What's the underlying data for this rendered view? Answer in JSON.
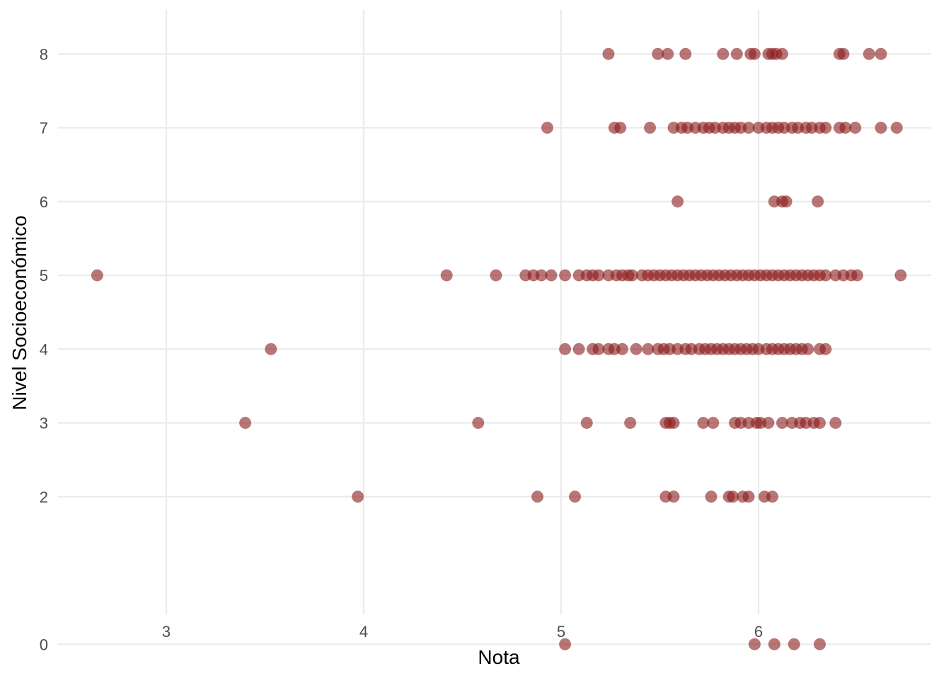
{
  "chart_data": {
    "type": "scatter",
    "title": "",
    "xlabel": "Nota",
    "ylabel": "Nivel Socioeconómico",
    "xlim": [
      2.5,
      6.9
    ],
    "ylim": [
      -0.55,
      8.6
    ],
    "x_ticks": [
      3,
      4,
      5,
      6
    ],
    "y_ticks": [
      0,
      2,
      3,
      4,
      5,
      6,
      7,
      8
    ],
    "x_tick_labels": [
      "3",
      "4",
      "5",
      "6"
    ],
    "y_tick_labels": [
      "0",
      "2",
      "3",
      "4",
      "5",
      "6",
      "7",
      "8"
    ],
    "grid": true,
    "legend": "none",
    "point_color": "#8b1a1a",
    "point_opacity": 0.6,
    "points": [
      {
        "x": 5.02,
        "y": 0
      },
      {
        "x": 5.98,
        "y": 0
      },
      {
        "x": 6.08,
        "y": 0
      },
      {
        "x": 6.18,
        "y": 0
      },
      {
        "x": 6.31,
        "y": 0
      },
      {
        "x": 3.97,
        "y": 2
      },
      {
        "x": 4.88,
        "y": 2
      },
      {
        "x": 5.07,
        "y": 2
      },
      {
        "x": 5.53,
        "y": 2
      },
      {
        "x": 5.57,
        "y": 2
      },
      {
        "x": 5.76,
        "y": 2
      },
      {
        "x": 5.85,
        "y": 2
      },
      {
        "x": 5.87,
        "y": 2
      },
      {
        "x": 5.92,
        "y": 2
      },
      {
        "x": 5.95,
        "y": 2
      },
      {
        "x": 6.03,
        "y": 2
      },
      {
        "x": 6.07,
        "y": 2
      },
      {
        "x": 3.4,
        "y": 3
      },
      {
        "x": 4.58,
        "y": 3
      },
      {
        "x": 5.13,
        "y": 3
      },
      {
        "x": 5.35,
        "y": 3
      },
      {
        "x": 5.53,
        "y": 3
      },
      {
        "x": 5.55,
        "y": 3
      },
      {
        "x": 5.57,
        "y": 3
      },
      {
        "x": 5.72,
        "y": 3
      },
      {
        "x": 5.77,
        "y": 3
      },
      {
        "x": 5.88,
        "y": 3
      },
      {
        "x": 5.91,
        "y": 3
      },
      {
        "x": 5.95,
        "y": 3
      },
      {
        "x": 5.99,
        "y": 3
      },
      {
        "x": 6.01,
        "y": 3
      },
      {
        "x": 6.05,
        "y": 3
      },
      {
        "x": 6.12,
        "y": 3
      },
      {
        "x": 6.17,
        "y": 3
      },
      {
        "x": 6.21,
        "y": 3
      },
      {
        "x": 6.24,
        "y": 3
      },
      {
        "x": 6.28,
        "y": 3
      },
      {
        "x": 6.31,
        "y": 3
      },
      {
        "x": 6.39,
        "y": 3
      },
      {
        "x": 3.53,
        "y": 4
      },
      {
        "x": 5.02,
        "y": 4
      },
      {
        "x": 5.09,
        "y": 4
      },
      {
        "x": 5.16,
        "y": 4
      },
      {
        "x": 5.19,
        "y": 4
      },
      {
        "x": 5.24,
        "y": 4
      },
      {
        "x": 5.27,
        "y": 4
      },
      {
        "x": 5.31,
        "y": 4
      },
      {
        "x": 5.38,
        "y": 4
      },
      {
        "x": 5.44,
        "y": 4
      },
      {
        "x": 5.49,
        "y": 4
      },
      {
        "x": 5.52,
        "y": 4
      },
      {
        "x": 5.55,
        "y": 4
      },
      {
        "x": 5.59,
        "y": 4
      },
      {
        "x": 5.63,
        "y": 4
      },
      {
        "x": 5.66,
        "y": 4
      },
      {
        "x": 5.7,
        "y": 4
      },
      {
        "x": 5.73,
        "y": 4
      },
      {
        "x": 5.76,
        "y": 4
      },
      {
        "x": 5.79,
        "y": 4
      },
      {
        "x": 5.82,
        "y": 4
      },
      {
        "x": 5.85,
        "y": 4
      },
      {
        "x": 5.88,
        "y": 4
      },
      {
        "x": 5.91,
        "y": 4
      },
      {
        "x": 5.94,
        "y": 4
      },
      {
        "x": 5.97,
        "y": 4
      },
      {
        "x": 6.0,
        "y": 4
      },
      {
        "x": 6.04,
        "y": 4
      },
      {
        "x": 6.07,
        "y": 4
      },
      {
        "x": 6.1,
        "y": 4
      },
      {
        "x": 6.13,
        "y": 4
      },
      {
        "x": 6.16,
        "y": 4
      },
      {
        "x": 6.19,
        "y": 4
      },
      {
        "x": 6.22,
        "y": 4
      },
      {
        "x": 6.25,
        "y": 4
      },
      {
        "x": 6.31,
        "y": 4
      },
      {
        "x": 6.34,
        "y": 4
      },
      {
        "x": 2.65,
        "y": 5
      },
      {
        "x": 4.42,
        "y": 5
      },
      {
        "x": 4.67,
        "y": 5
      },
      {
        "x": 4.82,
        "y": 5
      },
      {
        "x": 4.86,
        "y": 5
      },
      {
        "x": 4.9,
        "y": 5
      },
      {
        "x": 4.95,
        "y": 5
      },
      {
        "x": 5.02,
        "y": 5
      },
      {
        "x": 5.09,
        "y": 5
      },
      {
        "x": 5.13,
        "y": 5
      },
      {
        "x": 5.16,
        "y": 5
      },
      {
        "x": 5.19,
        "y": 5
      },
      {
        "x": 5.24,
        "y": 5
      },
      {
        "x": 5.28,
        "y": 5
      },
      {
        "x": 5.31,
        "y": 5
      },
      {
        "x": 5.34,
        "y": 5
      },
      {
        "x": 5.36,
        "y": 5
      },
      {
        "x": 5.41,
        "y": 5
      },
      {
        "x": 5.44,
        "y": 5
      },
      {
        "x": 5.47,
        "y": 5
      },
      {
        "x": 5.5,
        "y": 5
      },
      {
        "x": 5.53,
        "y": 5
      },
      {
        "x": 5.56,
        "y": 5
      },
      {
        "x": 5.59,
        "y": 5
      },
      {
        "x": 5.62,
        "y": 5
      },
      {
        "x": 5.65,
        "y": 5
      },
      {
        "x": 5.68,
        "y": 5
      },
      {
        "x": 5.71,
        "y": 5
      },
      {
        "x": 5.74,
        "y": 5
      },
      {
        "x": 5.77,
        "y": 5
      },
      {
        "x": 5.8,
        "y": 5
      },
      {
        "x": 5.83,
        "y": 5
      },
      {
        "x": 5.86,
        "y": 5
      },
      {
        "x": 5.89,
        "y": 5
      },
      {
        "x": 5.92,
        "y": 5
      },
      {
        "x": 5.95,
        "y": 5
      },
      {
        "x": 5.98,
        "y": 5
      },
      {
        "x": 6.01,
        "y": 5
      },
      {
        "x": 6.04,
        "y": 5
      },
      {
        "x": 6.07,
        "y": 5
      },
      {
        "x": 6.1,
        "y": 5
      },
      {
        "x": 6.13,
        "y": 5
      },
      {
        "x": 6.16,
        "y": 5
      },
      {
        "x": 6.19,
        "y": 5
      },
      {
        "x": 6.22,
        "y": 5
      },
      {
        "x": 6.25,
        "y": 5
      },
      {
        "x": 6.28,
        "y": 5
      },
      {
        "x": 6.31,
        "y": 5
      },
      {
        "x": 6.34,
        "y": 5
      },
      {
        "x": 6.39,
        "y": 5
      },
      {
        "x": 6.43,
        "y": 5
      },
      {
        "x": 6.47,
        "y": 5
      },
      {
        "x": 6.5,
        "y": 5
      },
      {
        "x": 6.72,
        "y": 5
      },
      {
        "x": 5.59,
        "y": 6
      },
      {
        "x": 6.08,
        "y": 6
      },
      {
        "x": 6.12,
        "y": 6
      },
      {
        "x": 6.14,
        "y": 6
      },
      {
        "x": 6.3,
        "y": 6
      },
      {
        "x": 4.93,
        "y": 7
      },
      {
        "x": 5.27,
        "y": 7
      },
      {
        "x": 5.3,
        "y": 7
      },
      {
        "x": 5.45,
        "y": 7
      },
      {
        "x": 5.57,
        "y": 7
      },
      {
        "x": 5.61,
        "y": 7
      },
      {
        "x": 5.64,
        "y": 7
      },
      {
        "x": 5.68,
        "y": 7
      },
      {
        "x": 5.72,
        "y": 7
      },
      {
        "x": 5.75,
        "y": 7
      },
      {
        "x": 5.78,
        "y": 7
      },
      {
        "x": 5.82,
        "y": 7
      },
      {
        "x": 5.85,
        "y": 7
      },
      {
        "x": 5.88,
        "y": 7
      },
      {
        "x": 5.91,
        "y": 7
      },
      {
        "x": 5.95,
        "y": 7
      },
      {
        "x": 6.0,
        "y": 7
      },
      {
        "x": 6.04,
        "y": 7
      },
      {
        "x": 6.07,
        "y": 7
      },
      {
        "x": 6.1,
        "y": 7
      },
      {
        "x": 6.13,
        "y": 7
      },
      {
        "x": 6.17,
        "y": 7
      },
      {
        "x": 6.2,
        "y": 7
      },
      {
        "x": 6.24,
        "y": 7
      },
      {
        "x": 6.27,
        "y": 7
      },
      {
        "x": 6.31,
        "y": 7
      },
      {
        "x": 6.34,
        "y": 7
      },
      {
        "x": 6.41,
        "y": 7
      },
      {
        "x": 6.44,
        "y": 7
      },
      {
        "x": 6.49,
        "y": 7
      },
      {
        "x": 6.62,
        "y": 7
      },
      {
        "x": 6.7,
        "y": 7
      },
      {
        "x": 5.24,
        "y": 8
      },
      {
        "x": 5.49,
        "y": 8
      },
      {
        "x": 5.54,
        "y": 8
      },
      {
        "x": 5.63,
        "y": 8
      },
      {
        "x": 5.82,
        "y": 8
      },
      {
        "x": 5.89,
        "y": 8
      },
      {
        "x": 5.96,
        "y": 8
      },
      {
        "x": 5.98,
        "y": 8
      },
      {
        "x": 6.05,
        "y": 8
      },
      {
        "x": 6.07,
        "y": 8
      },
      {
        "x": 6.09,
        "y": 8
      },
      {
        "x": 6.12,
        "y": 8
      },
      {
        "x": 6.41,
        "y": 8
      },
      {
        "x": 6.43,
        "y": 8
      },
      {
        "x": 6.56,
        "y": 8
      },
      {
        "x": 6.62,
        "y": 8
      }
    ]
  }
}
